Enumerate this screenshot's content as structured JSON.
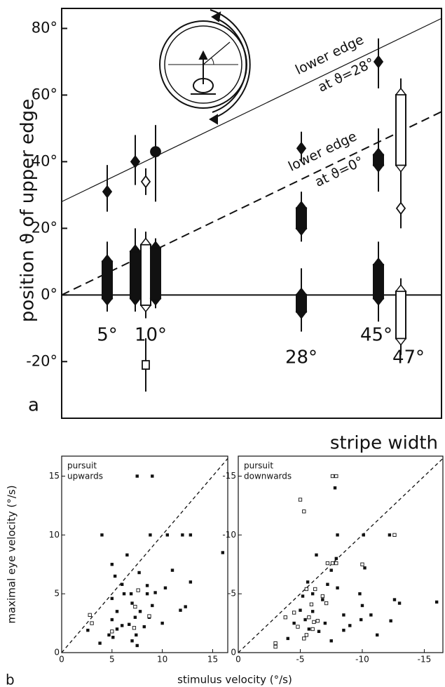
{
  "chart_data": [
    {
      "type": "range",
      "panel_label": "a",
      "ylabel": "position ϑ of upper edge",
      "xlabel": "stripe width",
      "categories": [
        "5°",
        "10°",
        "28°",
        "45°",
        "47°"
      ],
      "ylim": [
        -37,
        86
      ],
      "yticks": [
        {
          "value": 80,
          "label": "80°"
        },
        {
          "value": 60,
          "label": "60°"
        },
        {
          "value": 40,
          "label": "40°"
        },
        {
          "value": 20,
          "label": "20°"
        },
        {
          "value": 0,
          "label": "0°"
        },
        {
          "value": -20,
          "label": "-20°"
        }
      ],
      "reference_lines": [
        {
          "style": "solid",
          "values": [
            28,
            83
          ],
          "label": [
            "lower edge",
            "at ϑ=28°"
          ]
        },
        {
          "style": "dashed",
          "values": [
            0,
            55
          ],
          "label": [
            "lower edge",
            "at ϑ=0°"
          ]
        }
      ],
      "columns": [
        {
          "group": 0,
          "fill": "filled",
          "markers": [
            {
              "shape": "diamond",
              "value": 31,
              "range": [
                25,
                39
              ]
            }
          ],
          "bars": [
            {
              "low": -3,
              "high": 12,
              "range": [
                -5,
                16
              ]
            }
          ]
        },
        {
          "group": 1,
          "fill": "filled",
          "markers": [
            {
              "shape": "diamond",
              "value": 40,
              "range": [
                33,
                48
              ]
            }
          ],
          "bars": [
            {
              "low": -3,
              "high": 15,
              "range": [
                -5,
                20
              ]
            }
          ]
        },
        {
          "group": 1,
          "fill": "open",
          "markers": [
            {
              "shape": "diamond",
              "value": 34,
              "range": [
                30,
                38
              ]
            },
            {
              "shape": "square",
              "value": -21,
              "range": [
                -29,
                -13
              ]
            }
          ],
          "bars": [
            {
              "low": -5,
              "high": 17,
              "range": [
                -7,
                19
              ]
            }
          ]
        },
        {
          "group": 1,
          "fill": "filled",
          "markers": [
            {
              "shape": "circle",
              "value": 43,
              "range": [
                28,
                51
              ]
            }
          ],
          "bars": [
            {
              "low": -3,
              "high": 16,
              "range": [
                -4,
                17
              ]
            }
          ]
        },
        {
          "group": 2,
          "fill": "filled",
          "markers": [
            {
              "shape": "diamond",
              "value": 44,
              "range": [
                40,
                49
              ]
            }
          ],
          "bars": [
            {
              "low": 18,
              "high": 28,
              "range": [
                16,
                31
              ]
            },
            {
              "low": -7,
              "high": 2,
              "range": [
                -11,
                8
              ]
            }
          ]
        },
        {
          "group": 3,
          "fill": "filled",
          "markers": [
            {
              "shape": "diamond",
              "value": 70,
              "range": [
                62,
                77
              ]
            }
          ],
          "bars": [
            {
              "low": 37,
              "high": 44,
              "range": [
                31,
                50
              ]
            },
            {
              "low": -3,
              "high": 11,
              "range": [
                -8,
                16
              ]
            }
          ]
        },
        {
          "group": 4,
          "fill": "open",
          "markers": [
            {
              "shape": "diamond",
              "value": 26,
              "range": [
                20,
                33
              ]
            }
          ],
          "bars": [
            {
              "low": 37,
              "high": 62,
              "range": [
                30,
                65
              ]
            },
            {
              "low": -15,
              "high": 3,
              "range": [
                -18,
                5
              ]
            }
          ]
        }
      ]
    },
    {
      "type": "scatter",
      "panel_label": "b",
      "annotation": [
        "pursuit",
        "upwards"
      ],
      "ylabel": "maximal eye velocity (°/s)",
      "xlabel": "stimulus velocity (°/s)",
      "xlim": [
        0,
        16.5
      ],
      "ylim": [
        0,
        16.7
      ],
      "xticks": [
        0,
        5,
        10,
        15
      ],
      "yticks": [
        0,
        5,
        10,
        15
      ],
      "identity_line": true,
      "series": [
        {
          "marker": "filled",
          "x": [
            7.5,
            9,
            4,
            8.8,
            10.5,
            12,
            12.8,
            16,
            6.5,
            5,
            11,
            7.7,
            5.3,
            6,
            12.8,
            8.5,
            10.3,
            6.2,
            6.9,
            8.5,
            9.3,
            12.3,
            11.8,
            5,
            7,
            9,
            5.5,
            7.8,
            8.7,
            5,
            7.3,
            6,
            6.7,
            10,
            5.5,
            4.7,
            5.1,
            3.8,
            7.4,
            7,
            7.5,
            2.6,
            8.2
          ],
          "y": [
            15,
            15,
            10,
            10,
            10,
            10,
            10,
            8.5,
            8.3,
            7.5,
            7,
            6.8,
            6.5,
            5.8,
            6,
            5.7,
            5.5,
            5,
            5,
            5,
            5.1,
            3.9,
            3.6,
            4.6,
            4.2,
            4,
            3.5,
            3.5,
            3,
            2.8,
            3,
            2.3,
            2.4,
            2.5,
            2,
            1.5,
            1.3,
            0.8,
            1.5,
            1,
            0.6,
            1.9,
            2.2
          ]
        },
        {
          "marker": "open",
          "x": [
            2.8,
            7.3,
            8.7,
            7.2,
            5,
            7.6,
            3
          ],
          "y": [
            3.2,
            3.9,
            3.1,
            2.1,
            1.8,
            5.3,
            2.5
          ]
        }
      ]
    },
    {
      "type": "scatter",
      "annotation": [
        "pursuit",
        "downwards"
      ],
      "xlim": [
        0,
        -16.5
      ],
      "ylim": [
        0,
        -16.7
      ],
      "xticks": [
        0,
        -5,
        -10,
        -15
      ],
      "yticks": [
        0,
        -5,
        -10,
        -15
      ],
      "identity_line": true,
      "series": [
        {
          "marker": "filled",
          "x": [
            -7.8,
            -8,
            -10.1,
            -12.2,
            -7.9,
            -6.3,
            -7.5,
            -10.2,
            -5.6,
            -7.2,
            -8,
            -6,
            -9.8,
            -5.2,
            -6.8,
            -10,
            -12.6,
            -13,
            -16,
            -5,
            -6,
            -8.5,
            -10.7,
            -5.4,
            -7,
            -9,
            -4.5,
            -5.7,
            -6.5,
            -8.5,
            -11.2,
            -4,
            -7.5,
            -9.9,
            -12.3
          ],
          "y": [
            -14,
            -10,
            -10,
            -10,
            -8,
            -8.3,
            -7,
            -7.2,
            -6,
            -5.8,
            -5.5,
            -5,
            -5,
            -4.8,
            -4.5,
            -4,
            -4.5,
            -4.2,
            -4.3,
            -3.6,
            -3.5,
            -3.2,
            -3.2,
            -2.8,
            -2.5,
            -2.3,
            -2.5,
            -2,
            -1.8,
            -1.9,
            -1.5,
            -1.2,
            -1,
            -2.8,
            -2.7
          ]
        },
        {
          "marker": "open",
          "x": [
            -7.6,
            -7.9,
            -5,
            -5.3,
            -12.6,
            -7.2,
            -7.6,
            -7.9,
            -10,
            -5.5,
            -6.2,
            -6.8,
            -7.1,
            -4.5,
            -3.8,
            -5.7,
            -6.1,
            -4.8,
            -5.5,
            -6,
            -3,
            -3,
            -5.3,
            -6.4,
            -5.9
          ],
          "y": [
            -15,
            -15,
            -13,
            -12,
            -10,
            -7.6,
            -7.6,
            -7.6,
            -7.5,
            -5.4,
            -5.4,
            -4.8,
            -4.2,
            -3.4,
            -3,
            -3,
            -2.6,
            -2.2,
            -1.5,
            -2,
            -0.8,
            -0.5,
            -1.2,
            -2.7,
            -4.1
          ]
        }
      ]
    }
  ]
}
